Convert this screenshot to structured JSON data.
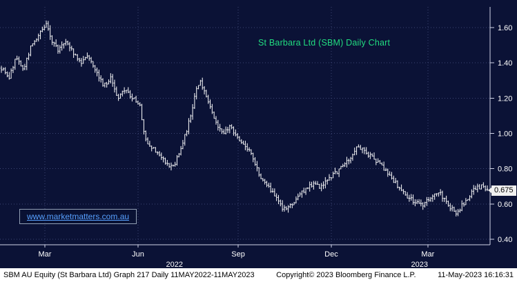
{
  "colors": {
    "background": "#0b1236",
    "grid": "#3d4674",
    "axis": "#d0d4e8",
    "axis_text": "#ffffff",
    "title": "#21dd80",
    "bar": "#ffffff",
    "link": "#57a0ff",
    "price_tag_bg": "#f0f0f0",
    "footer_bg": "#ffffff"
  },
  "watermark": {
    "url": "www.marketmatters.com.au"
  },
  "footer": {
    "left": "SBM AU Equity (St Barbara Ltd) Graph 217  Daily 11MAY2022-11MAY2023",
    "copyright": "Copyright© 2023 Bloomberg Finance L.P.",
    "timestamp": "11-May-2023 16:16:31"
  },
  "chart_data": {
    "type": "ohlc",
    "title": "St Barbara Ltd (SBM) Daily Chart",
    "security": "SBM AU Equity (St Barbara Ltd)",
    "period": "Daily 11MAY2022-11MAY2023",
    "ylim": [
      0.4,
      1.6
    ],
    "y_ticks": [
      0.4,
      0.6,
      0.8,
      1.0,
      1.2,
      1.4,
      1.6
    ],
    "x_ticks": [
      {
        "label": "Mar",
        "pos": 0.0915
      },
      {
        "label": "Jun",
        "pos": 0.2817
      },
      {
        "label": "Sep",
        "pos": 0.486
      },
      {
        "label": "Dec",
        "pos": 0.676
      },
      {
        "label": "Mar",
        "pos": 0.873
      }
    ],
    "year_labels": [
      {
        "label": "2022",
        "pos": 0.356
      },
      {
        "label": "2023",
        "pos": 0.856
      }
    ],
    "grid": true,
    "legend": "none",
    "last_price": 0.675,
    "last_price_label": "0.675",
    "num_bars": 250,
    "keypoints": [
      [
        0.0,
        1.37
      ],
      [
        0.015,
        1.31
      ],
      [
        0.03,
        1.43
      ],
      [
        0.045,
        1.36
      ],
      [
        0.062,
        1.5
      ],
      [
        0.08,
        1.57
      ],
      [
        0.092,
        1.62
      ],
      [
        0.105,
        1.52
      ],
      [
        0.118,
        1.47
      ],
      [
        0.132,
        1.53
      ],
      [
        0.148,
        1.46
      ],
      [
        0.162,
        1.4
      ],
      [
        0.178,
        1.45
      ],
      [
        0.195,
        1.36
      ],
      [
        0.21,
        1.27
      ],
      [
        0.225,
        1.31
      ],
      [
        0.24,
        1.2
      ],
      [
        0.255,
        1.25
      ],
      [
        0.27,
        1.2
      ],
      [
        0.285,
        1.16
      ],
      [
        0.295,
        0.97
      ],
      [
        0.308,
        0.93
      ],
      [
        0.322,
        0.88
      ],
      [
        0.338,
        0.84
      ],
      [
        0.352,
        0.8
      ],
      [
        0.37,
        0.92
      ],
      [
        0.382,
        1.02
      ],
      [
        0.392,
        1.13
      ],
      [
        0.4,
        1.24
      ],
      [
        0.408,
        1.3
      ],
      [
        0.42,
        1.22
      ],
      [
        0.432,
        1.12
      ],
      [
        0.445,
        1.05
      ],
      [
        0.458,
        1.0
      ],
      [
        0.47,
        1.04
      ],
      [
        0.486,
        0.98
      ],
      [
        0.5,
        0.93
      ],
      [
        0.512,
        0.9
      ],
      [
        0.522,
        0.82
      ],
      [
        0.532,
        0.76
      ],
      [
        0.545,
        0.72
      ],
      [
        0.558,
        0.66
      ],
      [
        0.572,
        0.6
      ],
      [
        0.585,
        0.56
      ],
      [
        0.598,
        0.6
      ],
      [
        0.612,
        0.65
      ],
      [
        0.628,
        0.69
      ],
      [
        0.642,
        0.72
      ],
      [
        0.655,
        0.7
      ],
      [
        0.668,
        0.73
      ],
      [
        0.676,
        0.75
      ],
      [
        0.69,
        0.78
      ],
      [
        0.705,
        0.82
      ],
      [
        0.72,
        0.87
      ],
      [
        0.732,
        0.93
      ],
      [
        0.745,
        0.9
      ],
      [
        0.76,
        0.87
      ],
      [
        0.775,
        0.84
      ],
      [
        0.79,
        0.79
      ],
      [
        0.805,
        0.74
      ],
      [
        0.82,
        0.69
      ],
      [
        0.835,
        0.64
      ],
      [
        0.85,
        0.61
      ],
      [
        0.862,
        0.59
      ],
      [
        0.873,
        0.61
      ],
      [
        0.888,
        0.65
      ],
      [
        0.9,
        0.67
      ],
      [
        0.912,
        0.62
      ],
      [
        0.925,
        0.58
      ],
      [
        0.937,
        0.55
      ],
      [
        0.95,
        0.6
      ],
      [
        0.962,
        0.64
      ],
      [
        0.975,
        0.69
      ],
      [
        0.988,
        0.7
      ],
      [
        1.0,
        0.675
      ]
    ]
  }
}
